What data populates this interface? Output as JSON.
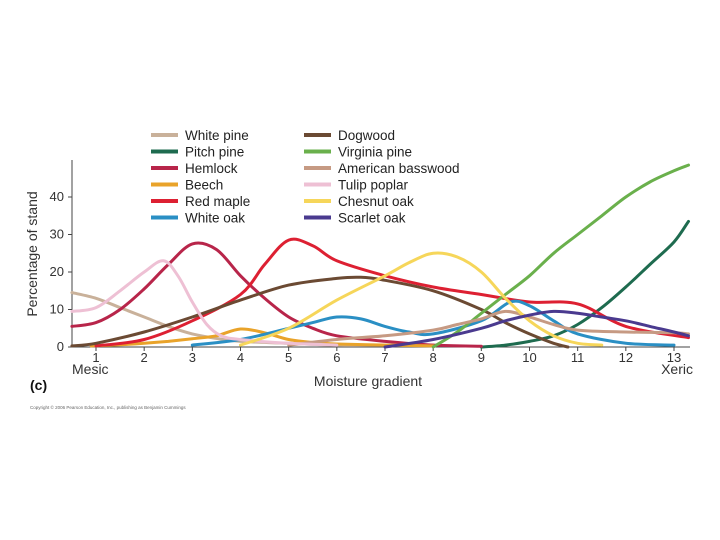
{
  "chart_data": {
    "type": "line",
    "panel_label": "(c)",
    "xlabel": "Moisture gradient",
    "x_left_label": "Mesic",
    "x_right_label": "Xeric",
    "ylabel": "Percentage of stand",
    "xlim": [
      0.5,
      13.3
    ],
    "ylim": [
      0,
      50
    ],
    "x_ticks": [
      "1",
      "2",
      "3",
      "4",
      "5",
      "6",
      "7",
      "8",
      "9",
      "10",
      "11",
      "12",
      "13"
    ],
    "y_ticks": [
      "0",
      "10",
      "20",
      "30",
      "40"
    ],
    "legend_position": "top-center",
    "copyright": "Copyright © 2006 Pearson Education, Inc., publishing as Benjamin Cummings",
    "series": [
      {
        "name": "White pine",
        "color": "#c9b19a",
        "points": [
          [
            0.5,
            14.5
          ],
          [
            1,
            13
          ],
          [
            1.5,
            10.5
          ],
          [
            2,
            8
          ],
          [
            2.5,
            5.5
          ],
          [
            3,
            3.5
          ],
          [
            3.5,
            2.3
          ],
          [
            4,
            1.5
          ],
          [
            5,
            1
          ],
          [
            6,
            0.5
          ],
          [
            7,
            0.5
          ],
          [
            8,
            0.5
          ]
        ]
      },
      {
        "name": "Pitch pine",
        "color": "#1e6b4f",
        "points": [
          [
            9,
            0
          ],
          [
            9.5,
            0.5
          ],
          [
            10,
            1.5
          ],
          [
            10.5,
            3
          ],
          [
            11,
            6
          ],
          [
            11.5,
            10.5
          ],
          [
            12,
            16
          ],
          [
            12.5,
            22
          ],
          [
            13,
            28
          ],
          [
            13.3,
            33.5
          ]
        ]
      },
      {
        "name": "Hemlock",
        "color": "#b8254a",
        "points": [
          [
            0.5,
            5.5
          ],
          [
            1,
            6.5
          ],
          [
            1.5,
            10
          ],
          [
            2,
            15.5
          ],
          [
            2.5,
            22
          ],
          [
            3,
            27.5
          ],
          [
            3.5,
            26
          ],
          [
            4,
            19
          ],
          [
            4.5,
            13
          ],
          [
            5,
            8
          ],
          [
            5.5,
            5
          ],
          [
            6,
            3
          ],
          [
            7,
            1.5
          ],
          [
            8,
            0.5
          ],
          [
            9,
            0.2
          ]
        ]
      },
      {
        "name": "Beech",
        "color": "#e9a32a",
        "points": [
          [
            0.9,
            0.3
          ],
          [
            1.5,
            0.6
          ],
          [
            2,
            1
          ],
          [
            2.5,
            1.5
          ],
          [
            3,
            2.2
          ],
          [
            3.5,
            3
          ],
          [
            4,
            4.8
          ],
          [
            4.5,
            3.8
          ],
          [
            5,
            2
          ],
          [
            5.5,
            1.2
          ],
          [
            6,
            0.8
          ],
          [
            7,
            0.5
          ],
          [
            8,
            0.3
          ]
        ]
      },
      {
        "name": "Red maple",
        "color": "#dd2032",
        "points": [
          [
            1,
            0.3
          ],
          [
            2,
            2
          ],
          [
            3,
            7
          ],
          [
            4,
            14
          ],
          [
            4.5,
            22
          ],
          [
            5,
            28.5
          ],
          [
            5.5,
            27
          ],
          [
            6,
            23
          ],
          [
            7,
            19
          ],
          [
            8,
            16
          ],
          [
            9,
            14
          ],
          [
            10,
            12
          ],
          [
            11,
            11.5
          ],
          [
            12,
            5.5
          ],
          [
            13.3,
            2.5
          ]
        ]
      },
      {
        "name": "White oak",
        "color": "#2a8fc4",
        "points": [
          [
            3,
            0.5
          ],
          [
            4,
            2
          ],
          [
            5,
            5
          ],
          [
            5.5,
            6.5
          ],
          [
            6,
            8
          ],
          [
            6.5,
            7.5
          ],
          [
            7,
            5.5
          ],
          [
            7.5,
            4
          ],
          [
            8,
            3.5
          ],
          [
            9,
            7
          ],
          [
            9.6,
            12
          ],
          [
            10,
            11
          ],
          [
            10.5,
            7
          ],
          [
            11,
            3.5
          ],
          [
            12,
            1
          ],
          [
            13,
            0.5
          ]
        ]
      },
      {
        "name": "Dogwood",
        "color": "#6b4a33",
        "points": [
          [
            0.5,
            0.3
          ],
          [
            1,
            1
          ],
          [
            2,
            4
          ],
          [
            3,
            8
          ],
          [
            4,
            12.5
          ],
          [
            5,
            16.5
          ],
          [
            6,
            18.3
          ],
          [
            6.5,
            18.6
          ],
          [
            7,
            17.8
          ],
          [
            8,
            15
          ],
          [
            9,
            10
          ],
          [
            9.5,
            6.5
          ],
          [
            10,
            3.5
          ],
          [
            10.5,
            1
          ],
          [
            10.8,
            0
          ]
        ]
      },
      {
        "name": "Virginia pine",
        "color": "#6ab04c",
        "points": [
          [
            8,
            0
          ],
          [
            8.5,
            4
          ],
          [
            9,
            9
          ],
          [
            9.5,
            14
          ],
          [
            10,
            19
          ],
          [
            10.5,
            25
          ],
          [
            11,
            30
          ],
          [
            11.5,
            35
          ],
          [
            12,
            40
          ],
          [
            12.5,
            44
          ],
          [
            13,
            47
          ],
          [
            13.3,
            48.5
          ]
        ]
      },
      {
        "name": "American basswood",
        "color": "#c69a83",
        "points": [
          [
            5,
            0.5
          ],
          [
            6,
            2
          ],
          [
            7,
            3
          ],
          [
            8,
            4.5
          ],
          [
            8.5,
            6
          ],
          [
            9,
            7.5
          ],
          [
            9.5,
            9.5
          ],
          [
            10,
            8
          ],
          [
            10.5,
            6
          ],
          [
            11,
            4.5
          ],
          [
            12,
            4
          ],
          [
            13,
            3.8
          ],
          [
            13.3,
            3.5
          ]
        ]
      },
      {
        "name": "Tulip poplar",
        "color": "#eec0d4",
        "points": [
          [
            0.5,
            9.5
          ],
          [
            1,
            10.5
          ],
          [
            1.5,
            15
          ],
          [
            2,
            20
          ],
          [
            2.4,
            23
          ],
          [
            2.7,
            19
          ],
          [
            3,
            12
          ],
          [
            3.3,
            6
          ],
          [
            3.6,
            3
          ],
          [
            4,
            2
          ],
          [
            5,
            1
          ],
          [
            6,
            0.5
          ]
        ]
      },
      {
        "name": "Chesnut oak",
        "color": "#f6d65a",
        "points": [
          [
            4,
            0.5
          ],
          [
            5,
            5
          ],
          [
            6,
            12.5
          ],
          [
            7,
            19
          ],
          [
            7.5,
            22.5
          ],
          [
            8,
            25
          ],
          [
            8.5,
            24
          ],
          [
            9,
            20
          ],
          [
            9.5,
            13
          ],
          [
            10,
            7
          ],
          [
            10.5,
            3
          ],
          [
            11,
            1
          ],
          [
            11.5,
            0.5
          ]
        ]
      },
      {
        "name": "Scarlet oak",
        "color": "#4a3a8f",
        "points": [
          [
            7,
            0
          ],
          [
            8,
            2
          ],
          [
            9,
            5
          ],
          [
            9.5,
            7
          ],
          [
            10,
            8.5
          ],
          [
            10.5,
            9.5
          ],
          [
            11,
            9
          ],
          [
            11.5,
            8
          ],
          [
            12,
            7
          ],
          [
            12.5,
            5.5
          ],
          [
            13,
            4
          ],
          [
            13.3,
            3
          ]
        ]
      }
    ]
  }
}
